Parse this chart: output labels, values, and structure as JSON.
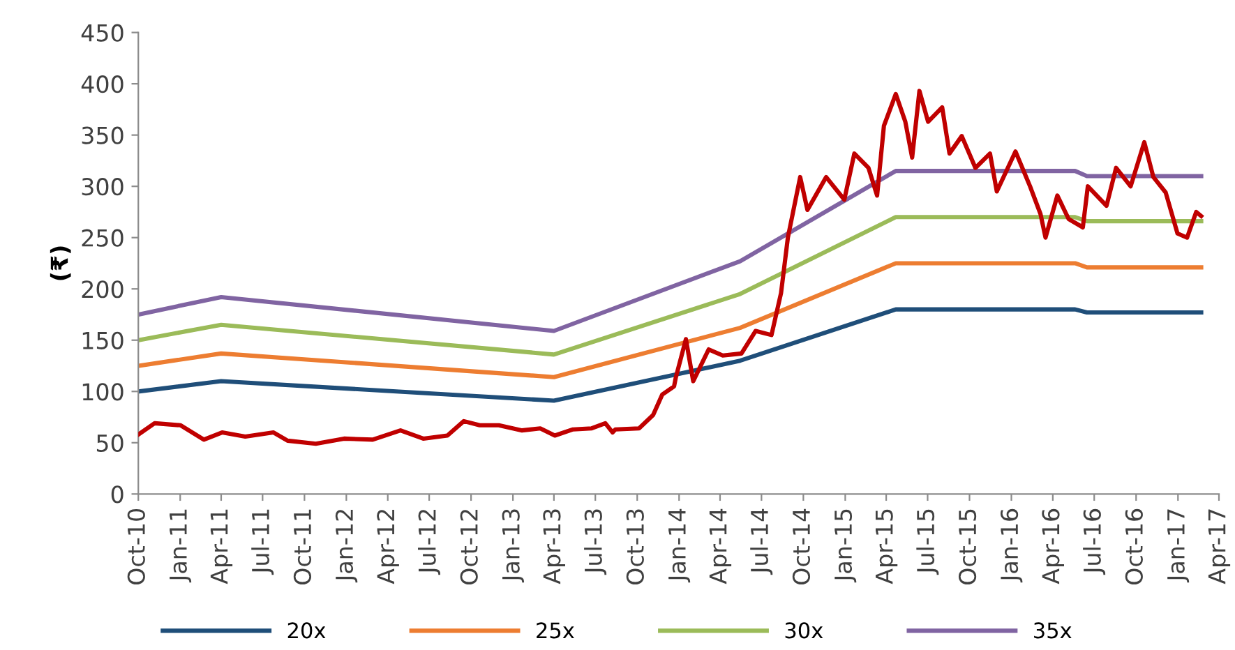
{
  "chart_data": {
    "type": "line",
    "ylabel": "(₹)",
    "legend": "bottom",
    "grid": false,
    "marker": "none",
    "line_style": "solid",
    "xlim": [
      "2010-10-01",
      "2017-04-01"
    ],
    "xticks": [
      {
        "value": "2010-10-01",
        "label": "Oct-10"
      },
      {
        "value": "2011-01-01",
        "label": "Jan-11"
      },
      {
        "value": "2011-04-01",
        "label": "Apr-11"
      },
      {
        "value": "2011-07-01",
        "label": "Jul-11"
      },
      {
        "value": "2011-10-01",
        "label": "Oct-11"
      },
      {
        "value": "2012-01-01",
        "label": "Jan-12"
      },
      {
        "value": "2012-04-01",
        "label": "Apr-12"
      },
      {
        "value": "2012-07-01",
        "label": "Jul-12"
      },
      {
        "value": "2012-10-01",
        "label": "Oct-12"
      },
      {
        "value": "2013-01-01",
        "label": "Jan-13"
      },
      {
        "value": "2013-04-01",
        "label": "Apr-13"
      },
      {
        "value": "2013-07-01",
        "label": "Jul-13"
      },
      {
        "value": "2013-10-01",
        "label": "Oct-13"
      },
      {
        "value": "2014-01-01",
        "label": "Jan-14"
      },
      {
        "value": "2014-04-01",
        "label": "Apr-14"
      },
      {
        "value": "2014-07-01",
        "label": "Jul-14"
      },
      {
        "value": "2014-10-01",
        "label": "Oct-14"
      },
      {
        "value": "2015-01-01",
        "label": "Jan-15"
      },
      {
        "value": "2015-04-01",
        "label": "Apr-15"
      },
      {
        "value": "2015-07-01",
        "label": "Jul-15"
      },
      {
        "value": "2015-10-01",
        "label": "Oct-15"
      },
      {
        "value": "2016-01-01",
        "label": "Jan-16"
      },
      {
        "value": "2016-04-01",
        "label": "Apr-16"
      },
      {
        "value": "2016-07-01",
        "label": "Jul-16"
      },
      {
        "value": "2016-10-01",
        "label": "Oct-16"
      },
      {
        "value": "2017-01-01",
        "label": "Jan-17"
      },
      {
        "value": "2017-04-01",
        "label": "Apr-17"
      }
    ],
    "ylim": [
      0,
      450
    ],
    "yticks": [
      0,
      50,
      100,
      150,
      200,
      250,
      300,
      350,
      400,
      450
    ],
    "series": [
      {
        "name": "20x",
        "color": "#1f4e79",
        "x": [
          "2010-10-01",
          "2011-04-01",
          "2013-04-01",
          "2014-05-15",
          "2015-04-22",
          "2016-05-20",
          "2016-06-15",
          "2017-02-21"
        ],
        "values": [
          100,
          110,
          91,
          130,
          180,
          180,
          177,
          177
        ]
      },
      {
        "name": "25x",
        "color": "#ed7d31",
        "x": [
          "2010-10-01",
          "2011-04-01",
          "2013-04-01",
          "2014-05-15",
          "2015-04-22",
          "2016-05-20",
          "2016-06-15",
          "2017-02-21"
        ],
        "values": [
          125,
          137,
          114,
          162,
          225,
          225,
          221,
          221
        ]
      },
      {
        "name": "30x",
        "color": "#9bbb59",
        "x": [
          "2010-10-01",
          "2011-04-01",
          "2013-04-01",
          "2014-05-15",
          "2015-04-22",
          "2016-05-20",
          "2016-06-15",
          "2017-02-21"
        ],
        "values": [
          150,
          165,
          136,
          195,
          270,
          270,
          266,
          266
        ]
      },
      {
        "name": "35x",
        "color": "#8064a2",
        "x": [
          "2010-10-01",
          "2011-04-01",
          "2013-04-01",
          "2014-05-15",
          "2015-04-22",
          "2016-05-20",
          "2016-06-15",
          "2017-02-21"
        ],
        "values": [
          175,
          192,
          159,
          227,
          315,
          315,
          310,
          310
        ]
      },
      {
        "color": "#c00000",
        "x": [
          "2010-10-01",
          "2010-11-06",
          "2011-01-02",
          "2011-02-22",
          "2011-04-03",
          "2011-05-24",
          "2011-07-25",
          "2011-08-25",
          "2011-10-26",
          "2011-12-27",
          "2012-02-28",
          "2012-04-29",
          "2012-06-18",
          "2012-08-10",
          "2012-09-15",
          "2012-10-20",
          "2012-12-01",
          "2013-01-21",
          "2013-03-02",
          "2013-04-03",
          "2013-05-13",
          "2013-06-23",
          "2013-07-23",
          "2013-08-08",
          "2013-08-14",
          "2013-10-05",
          "2013-11-05",
          "2013-11-25",
          "2013-12-21",
          "2013-12-25",
          "2014-01-16",
          "2014-02-01",
          "2014-03-07",
          "2014-04-07",
          "2014-05-18",
          "2014-06-18",
          "2014-07-23",
          "2014-08-13",
          "2014-08-28",
          "2014-09-24",
          "2014-10-10",
          "2014-11-20",
          "2014-12-30",
          "2015-01-21",
          "2015-02-21",
          "2015-03-12",
          "2015-03-27",
          "2015-04-22",
          "2015-05-13",
          "2015-05-28",
          "2015-06-13",
          "2015-07-02",
          "2015-08-02",
          "2015-08-18",
          "2015-09-14",
          "2015-10-14",
          "2015-11-15",
          "2015-11-30",
          "2016-01-10",
          "2016-02-11",
          "2016-03-05",
          "2016-03-16",
          "2016-04-11",
          "2016-05-06",
          "2016-06-06",
          "2016-06-17",
          "2016-07-28",
          "2016-08-18",
          "2016-09-19",
          "2016-10-19",
          "2016-11-08",
          "2016-12-05",
          "2016-12-31",
          "2017-01-21",
          "2017-02-10",
          "2017-02-21"
        ],
        "values": [
          58,
          69,
          67,
          53,
          60,
          56,
          60,
          52,
          49,
          54,
          53,
          62,
          54,
          57,
          71,
          67,
          67,
          62,
          64,
          57,
          63,
          64,
          69,
          60,
          63,
          64,
          77,
          97,
          105,
          114,
          151,
          110,
          141,
          135,
          137,
          159,
          155,
          196,
          250,
          309,
          277,
          309,
          287,
          332,
          318,
          291,
          359,
          390,
          363,
          328,
          393,
          363,
          377,
          332,
          349,
          318,
          332,
          295,
          334,
          300,
          273,
          250,
          291,
          268,
          260,
          300,
          281,
          318,
          300,
          343,
          309,
          294,
          254,
          250,
          275,
          271
        ]
      }
    ]
  }
}
